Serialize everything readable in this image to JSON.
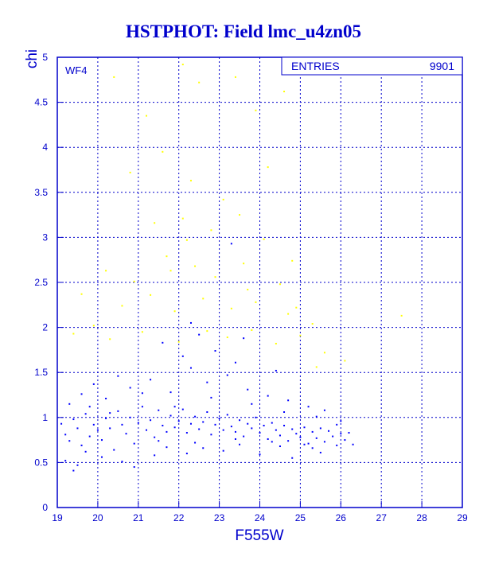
{
  "colors": {
    "axis": "#0000cc",
    "grid": "#0000cc",
    "text": "#0000cc",
    "background": "#ffffff",
    "point_primary": "#0000ff",
    "point_secondary": "#ffff00"
  },
  "chart_data": {
    "type": "scatter",
    "title": "HSTPHOT: Field lmc_u4zn05",
    "xlabel": "F555W",
    "ylabel": "chi",
    "panel_label": "WF4",
    "stats": {
      "label": "ENTRIES",
      "value": "9901"
    },
    "xlim": [
      19,
      29
    ],
    "ylim": [
      0,
      5
    ],
    "xticks": [
      19,
      20,
      21,
      22,
      23,
      24,
      25,
      26,
      27,
      28,
      29
    ],
    "yticks": [
      0,
      0.5,
      1,
      1.5,
      2,
      2.5,
      3,
      3.5,
      4,
      4.5,
      5
    ],
    "ytick_labels": [
      "0",
      "0.5",
      "1",
      "1.5",
      "2",
      "2.5",
      "3",
      "3.5",
      "4",
      "4.5",
      "5"
    ],
    "grid": true,
    "series": [
      {
        "color": "#0000ff",
        "points": [
          [
            19.1,
            0.93
          ],
          [
            19.2,
            0.81
          ],
          [
            19.3,
            0.74
          ],
          [
            19.4,
            0.98
          ],
          [
            19.5,
            0.88
          ],
          [
            19.6,
            0.69
          ],
          [
            19.7,
            1.04
          ],
          [
            19.8,
            0.79
          ],
          [
            19.9,
            0.92
          ],
          [
            20.0,
            0.86
          ],
          [
            20.1,
            0.75
          ],
          [
            20.2,
            0.99
          ],
          [
            20.3,
            0.88
          ],
          [
            20.4,
            0.64
          ],
          [
            20.5,
            1.07
          ],
          [
            20.6,
            0.92
          ],
          [
            20.7,
            0.82
          ],
          [
            20.8,
            1.0
          ],
          [
            20.9,
            0.71
          ],
          [
            21.0,
            0.94
          ],
          [
            21.1,
            1.12
          ],
          [
            21.2,
            0.86
          ],
          [
            21.3,
            0.97
          ],
          [
            21.4,
            0.78
          ],
          [
            21.5,
            1.08
          ],
          [
            21.6,
            0.91
          ],
          [
            21.7,
            0.84
          ],
          [
            21.8,
            1.02
          ],
          [
            21.9,
            0.89
          ],
          [
            22.0,
            0.96
          ],
          [
            22.1,
            1.09
          ],
          [
            22.2,
            0.83
          ],
          [
            22.3,
            0.93
          ],
          [
            22.4,
            1.01
          ],
          [
            22.5,
            0.87
          ],
          [
            22.6,
            0.95
          ],
          [
            22.7,
            1.06
          ],
          [
            22.8,
            0.81
          ],
          [
            22.9,
            0.92
          ],
          [
            23.0,
            0.99
          ],
          [
            23.1,
            0.86
          ],
          [
            23.2,
            1.03
          ],
          [
            23.3,
            0.9
          ],
          [
            23.4,
            0.84
          ],
          [
            23.5,
            0.97
          ],
          [
            23.6,
            0.79
          ],
          [
            23.7,
            0.93
          ],
          [
            23.8,
            0.88
          ],
          [
            23.9,
            1.0
          ],
          [
            24.0,
            0.83
          ],
          [
            24.1,
            0.91
          ],
          [
            24.2,
            0.76
          ],
          [
            24.3,
            0.94
          ],
          [
            24.4,
            0.86
          ],
          [
            24.5,
            0.8
          ],
          [
            24.6,
            0.91
          ],
          [
            24.7,
            0.74
          ],
          [
            24.8,
            0.87
          ],
          [
            24.9,
            0.82
          ],
          [
            25.0,
            0.78
          ],
          [
            25.1,
            0.89
          ],
          [
            25.2,
            0.71
          ],
          [
            25.3,
            0.84
          ],
          [
            25.4,
            0.77
          ],
          [
            25.5,
            0.88
          ],
          [
            25.6,
            0.73
          ],
          [
            25.7,
            0.85
          ],
          [
            25.8,
            0.79
          ],
          [
            25.9,
            0.92
          ],
          [
            26.0,
            0.82
          ],
          [
            26.1,
            0.75
          ],
          [
            26.3,
            0.7
          ],
          [
            19.3,
            1.15
          ],
          [
            19.6,
            1.26
          ],
          [
            20.2,
            1.21
          ],
          [
            20.8,
            1.33
          ],
          [
            21.3,
            1.42
          ],
          [
            21.8,
            1.28
          ],
          [
            22.3,
            1.55
          ],
          [
            22.7,
            1.39
          ],
          [
            23.2,
            1.47
          ],
          [
            23.7,
            1.31
          ],
          [
            24.2,
            1.24
          ],
          [
            24.7,
            1.19
          ],
          [
            25.2,
            1.12
          ],
          [
            25.6,
            1.08
          ],
          [
            22.1,
            1.68
          ],
          [
            22.9,
            1.74
          ],
          [
            23.4,
            1.61
          ],
          [
            21.6,
            1.83
          ],
          [
            22.5,
            1.92
          ],
          [
            23.6,
            1.88
          ],
          [
            24.4,
            1.52
          ],
          [
            20.5,
            1.46
          ],
          [
            19.9,
            1.37
          ],
          [
            22.3,
            2.05
          ],
          [
            23.3,
            2.93
          ],
          [
            19.2,
            0.52
          ],
          [
            19.5,
            0.47
          ],
          [
            20.1,
            0.56
          ],
          [
            20.6,
            0.51
          ],
          [
            21.4,
            0.58
          ],
          [
            22.2,
            0.6
          ],
          [
            23.1,
            0.63
          ],
          [
            24.0,
            0.59
          ],
          [
            24.8,
            0.55
          ],
          [
            25.5,
            0.61
          ],
          [
            19.4,
            0.41
          ],
          [
            19.7,
            0.62
          ],
          [
            20.9,
            0.45
          ],
          [
            21.7,
            0.67
          ],
          [
            22.6,
            0.66
          ],
          [
            23.5,
            0.7
          ],
          [
            24.5,
            0.68
          ],
          [
            25.3,
            0.66
          ],
          [
            25.9,
            0.69
          ],
          [
            26.2,
            0.83
          ],
          [
            21.1,
            1.27
          ],
          [
            21.9,
            1.12
          ],
          [
            22.8,
            1.22
          ],
          [
            23.8,
            1.15
          ],
          [
            24.6,
            1.06
          ],
          [
            25.4,
            1.01
          ],
          [
            26.0,
            0.96
          ],
          [
            20.3,
            1.05
          ],
          [
            19.8,
            1.12
          ],
          [
            21.5,
            0.74
          ],
          [
            22.4,
            0.72
          ],
          [
            23.4,
            0.76
          ],
          [
            24.3,
            0.73
          ],
          [
            25.1,
            0.7
          ]
        ]
      },
      {
        "color": "#ffff00",
        "points": [
          [
            20.4,
            4.78
          ],
          [
            21.2,
            4.35
          ],
          [
            22.1,
            4.92
          ],
          [
            22.5,
            4.72
          ],
          [
            23.4,
            4.78
          ],
          [
            23.9,
            4.41
          ],
          [
            24.6,
            4.62
          ],
          [
            20.8,
            3.72
          ],
          [
            21.6,
            3.95
          ],
          [
            22.3,
            3.63
          ],
          [
            23.1,
            3.42
          ],
          [
            24.2,
            3.78
          ],
          [
            21.4,
            3.16
          ],
          [
            22.1,
            3.21
          ],
          [
            22.8,
            3.08
          ],
          [
            23.5,
            3.25
          ],
          [
            24.1,
            2.98
          ],
          [
            24.8,
            2.74
          ],
          [
            20.2,
            2.63
          ],
          [
            20.9,
            2.51
          ],
          [
            21.7,
            2.79
          ],
          [
            22.4,
            2.68
          ],
          [
            22.9,
            2.56
          ],
          [
            23.6,
            2.71
          ],
          [
            24.5,
            2.48
          ],
          [
            19.6,
            2.37
          ],
          [
            20.6,
            2.24
          ],
          [
            21.3,
            2.36
          ],
          [
            21.9,
            2.18
          ],
          [
            22.6,
            2.32
          ],
          [
            23.3,
            2.21
          ],
          [
            23.9,
            2.28
          ],
          [
            24.7,
            2.15
          ],
          [
            25.3,
            2.04
          ],
          [
            19.4,
            1.93
          ],
          [
            20.3,
            1.87
          ],
          [
            21.1,
            1.95
          ],
          [
            22.0,
            1.84
          ],
          [
            22.7,
            1.96
          ],
          [
            23.2,
            1.89
          ],
          [
            23.8,
            1.97
          ],
          [
            24.4,
            1.82
          ],
          [
            25.0,
            1.91
          ],
          [
            25.6,
            1.72
          ],
          [
            26.1,
            1.63
          ],
          [
            27.5,
            2.13
          ],
          [
            19.9,
            2.02
          ],
          [
            25.4,
            1.56
          ],
          [
            21.8,
            2.63
          ],
          [
            23.7,
            2.42
          ],
          [
            22.2,
            2.97
          ],
          [
            24.9,
            2.22
          ]
        ]
      }
    ]
  }
}
